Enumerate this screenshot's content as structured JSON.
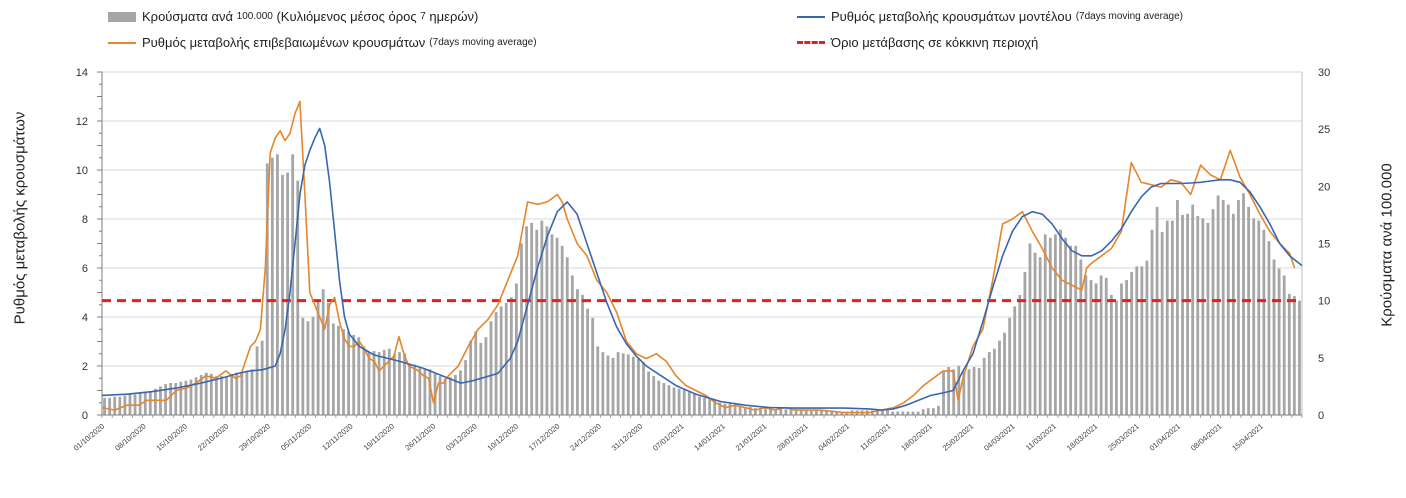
{
  "legend": {
    "bars_label": "Κρούσματα ανά",
    "bars_label_small": "100.000",
    "bars_label_rest": "(Κυλιόμενος μέσος όρος",
    "bars_label_small2": "7",
    "bars_label_end": "ημερών)",
    "model_label": "Ρυθμός μεταβολής κρουσμάτων μοντέλου",
    "model_small": "(7days moving average)",
    "confirmed_label": "Ρυθμός μεταβολής επιβεβαιωμένων κρουσμάτων",
    "confirmed_small": "(7days moving average)",
    "threshold_label": "Όριο μετάβασης σε κόκκινη περιοχή"
  },
  "colors": {
    "bars": "#a6a6a6",
    "model": "#3a66b0",
    "confirmed": "#e5862c",
    "threshold": "#e3201b",
    "grid": "#d9d9d9"
  },
  "chart_data": {
    "type": "bar",
    "title": "",
    "ylabel": "Ρυθμός μεταβολής κρουσμάτων",
    "y2label": "Κρούσματα ανά 100.000",
    "ylim": [
      0,
      14
    ],
    "y2lim": [
      0,
      30
    ],
    "yticks": [
      0,
      2,
      4,
      6,
      8,
      10,
      12,
      14
    ],
    "y2ticks": [
      0,
      5,
      10,
      15,
      20,
      25,
      30
    ],
    "threshold": 4.67,
    "x_tick_labels": [
      "01/10/2020",
      "08/10/2020",
      "15/10/2020",
      "22/10/2020",
      "29/10/2020",
      "05/11/2020",
      "12/11/2020",
      "19/11/2020",
      "26/11/2020",
      "03/12/2020",
      "10/12/2020",
      "17/12/2020",
      "24/12/2020",
      "31/12/2020",
      "07/01/2021",
      "14/01/2021",
      "21/01/2021",
      "28/01/2021",
      "04/02/2021",
      "11/02/2021",
      "18/02/2021",
      "25/02/2021",
      "04/03/2021",
      "11/03/2021",
      "18/03/2021",
      "25/03/2021",
      "01/04/2021",
      "08/04/2021",
      "15/04/2021"
    ],
    "series": [
      {
        "name": "Κρούσματα ανά 100.000 (7 ημερών)",
        "axis": "right",
        "kind": "bar",
        "values": [
          1.5,
          1.5,
          1.6,
          1.6,
          1.7,
          1.8,
          1.8,
          1.9,
          2.0,
          2.1,
          2.3,
          2.5,
          2.7,
          2.8,
          2.8,
          2.9,
          3.0,
          3.1,
          3.3,
          3.5,
          3.7,
          3.6,
          3.4,
          3.4,
          3.3,
          3.5,
          3.7,
          3.8,
          3.9,
          4.0,
          6.0,
          6.5,
          22.0,
          22.5,
          22.8,
          21.0,
          21.2,
          22.8,
          20.5,
          8.5,
          8.2,
          8.6,
          10.0,
          11.0,
          9.8,
          8.0,
          7.8,
          7.5,
          7.3,
          7.0,
          6.8,
          6.0,
          5.5,
          5.6,
          5.5,
          5.7,
          5.8,
          5.3,
          5.5,
          5.4,
          4.5,
          4.4,
          4.1,
          4.0,
          4.0,
          3.6,
          3.4,
          3.2,
          3.3,
          3.5,
          3.9,
          4.8,
          6.5,
          7.3,
          6.3,
          6.8,
          8.2,
          9.0,
          9.5,
          9.8,
          10.3,
          11.5,
          15.0,
          16.5,
          16.8,
          16.2,
          17.0,
          16.5,
          15.8,
          15.5,
          14.8,
          13.8,
          12.2,
          11.0,
          10.5,
          9.3,
          8.5,
          6.0,
          5.5,
          5.2,
          5.0,
          5.5,
          5.4,
          5.3,
          5.1,
          4.9,
          4.6,
          3.8,
          3.4,
          3.0,
          2.8,
          2.6,
          2.4,
          2.3,
          2.2,
          2.0,
          1.9,
          1.6,
          1.5,
          1.4,
          1.3,
          1.1,
          1.0,
          1.0,
          0.9,
          0.8,
          0.7,
          0.7,
          0.6,
          0.6,
          0.6,
          0.5,
          0.5,
          0.5,
          0.5,
          0.5,
          0.5,
          0.5,
          0.4,
          0.4,
          0.4,
          0.4,
          0.4,
          0.4,
          0.3,
          0.3,
          0.3,
          0.4,
          0.4,
          0.4,
          0.4,
          0.4,
          0.4,
          0.4,
          0.4,
          0.3,
          0.3,
          0.3,
          0.3,
          0.3,
          0.3,
          0.5,
          0.6,
          0.6,
          0.8,
          3.8,
          4.2,
          4.0,
          4.3,
          3.8,
          4.0,
          4.2,
          4.1,
          5.0,
          5.5,
          5.8,
          6.5,
          7.2,
          8.5,
          9.5,
          10.5,
          12.5,
          15.0,
          14.2,
          13.8,
          15.8,
          15.5,
          15.8,
          16.2,
          15.5,
          14.8,
          14.8,
          13.6,
          12.2,
          11.8,
          11.5,
          12.2,
          12.0,
          10.5,
          10.0,
          11.5,
          11.8,
          12.5,
          13.0,
          13.0,
          13.5,
          16.2,
          18.2,
          16.0,
          17.0,
          17.0,
          18.8,
          17.5,
          17.6,
          18.4,
          17.4,
          17.2,
          16.8,
          18.0,
          19.2,
          18.8,
          18.4,
          17.6,
          18.8,
          19.4,
          18.2,
          17.2,
          17.0,
          16.2,
          15.2,
          13.6,
          12.8,
          12.2,
          10.6,
          10.4,
          10.0
        ]
      },
      {
        "name": "Ρυθμός μεταβολής κρουσμάτων μοντέλου",
        "axis": "left",
        "kind": "line",
        "points": [
          [
            0,
            0.8
          ],
          [
            10,
            0.85
          ],
          [
            20,
            0.95
          ],
          [
            30,
            1.1
          ],
          [
            40,
            1.3
          ],
          [
            50,
            1.55
          ],
          [
            55,
            1.7
          ],
          [
            60,
            1.8
          ],
          [
            65,
            1.85
          ],
          [
            70,
            2.0
          ],
          [
            72,
            2.5
          ],
          [
            74,
            3.5
          ],
          [
            76,
            5.0
          ],
          [
            78,
            7.0
          ],
          [
            80,
            9.0
          ],
          [
            82,
            10.2
          ],
          [
            84,
            10.8
          ],
          [
            86,
            11.3
          ],
          [
            88,
            11.7
          ],
          [
            90,
            11.0
          ],
          [
            92,
            9.5
          ],
          [
            94,
            7.5
          ],
          [
            96,
            5.5
          ],
          [
            98,
            4.0
          ],
          [
            100,
            3.3
          ],
          [
            104,
            2.8
          ],
          [
            110,
            2.45
          ],
          [
            120,
            2.2
          ],
          [
            130,
            1.9
          ],
          [
            140,
            1.5
          ],
          [
            145,
            1.3
          ],
          [
            150,
            1.4
          ],
          [
            160,
            1.7
          ],
          [
            165,
            2.3
          ],
          [
            168,
            3.0
          ],
          [
            172,
            4.5
          ],
          [
            176,
            6.0
          ],
          [
            180,
            7.3
          ],
          [
            184,
            8.3
          ],
          [
            188,
            8.7
          ],
          [
            192,
            8.2
          ],
          [
            196,
            7.0
          ],
          [
            200,
            5.8
          ],
          [
            204,
            4.6
          ],
          [
            208,
            3.6
          ],
          [
            212,
            2.9
          ],
          [
            216,
            2.4
          ],
          [
            220,
            2.0
          ],
          [
            226,
            1.6
          ],
          [
            232,
            1.2
          ],
          [
            240,
            0.85
          ],
          [
            250,
            0.55
          ],
          [
            260,
            0.4
          ],
          [
            270,
            0.3
          ],
          [
            280,
            0.28
          ],
          [
            290,
            0.28
          ],
          [
            300,
            0.28
          ],
          [
            310,
            0.25
          ],
          [
            315,
            0.2
          ],
          [
            320,
            0.25
          ],
          [
            325,
            0.4
          ],
          [
            330,
            0.6
          ],
          [
            335,
            0.8
          ],
          [
            340,
            0.9
          ],
          [
            344,
            1.0
          ],
          [
            346,
            1.4
          ],
          [
            348,
            1.8
          ],
          [
            352,
            2.5
          ],
          [
            356,
            3.8
          ],
          [
            360,
            5.2
          ],
          [
            364,
            6.5
          ],
          [
            368,
            7.5
          ],
          [
            372,
            8.1
          ],
          [
            376,
            8.3
          ],
          [
            380,
            8.2
          ],
          [
            384,
            7.8
          ],
          [
            388,
            7.2
          ],
          [
            392,
            6.7
          ],
          [
            396,
            6.5
          ],
          [
            400,
            6.5
          ],
          [
            404,
            6.7
          ],
          [
            408,
            7.1
          ],
          [
            412,
            7.6
          ],
          [
            416,
            8.3
          ],
          [
            420,
            8.9
          ],
          [
            424,
            9.3
          ],
          [
            428,
            9.45
          ],
          [
            432,
            9.45
          ],
          [
            436,
            9.45
          ],
          [
            440,
            9.47
          ],
          [
            444,
            9.5
          ],
          [
            448,
            9.55
          ],
          [
            452,
            9.6
          ],
          [
            456,
            9.6
          ],
          [
            460,
            9.5
          ],
          [
            464,
            9.1
          ],
          [
            468,
            8.5
          ],
          [
            472,
            7.8
          ],
          [
            476,
            7.0
          ],
          [
            480,
            6.5
          ],
          [
            485,
            6.1
          ]
        ]
      },
      {
        "name": "Ρυθμός μεταβολής επιβεβαιωμένων κρουσμάτων",
        "axis": "left",
        "kind": "line",
        "points": [
          [
            0,
            0.3
          ],
          [
            5,
            0.2
          ],
          [
            10,
            0.4
          ],
          [
            15,
            0.4
          ],
          [
            18,
            0.6
          ],
          [
            22,
            0.6
          ],
          [
            26,
            0.6
          ],
          [
            30,
            1.0
          ],
          [
            34,
            1.1
          ],
          [
            38,
            1.3
          ],
          [
            42,
            1.6
          ],
          [
            46,
            1.5
          ],
          [
            50,
            1.8
          ],
          [
            54,
            1.5
          ],
          [
            56,
            1.6
          ],
          [
            58,
            2.2
          ],
          [
            60,
            2.8
          ],
          [
            62,
            3.0
          ],
          [
            64,
            3.5
          ],
          [
            66,
            6.0
          ],
          [
            68,
            10.7
          ],
          [
            70,
            11.3
          ],
          [
            72,
            11.6
          ],
          [
            74,
            11.2
          ],
          [
            76,
            11.5
          ],
          [
            78,
            12.3
          ],
          [
            80,
            12.8
          ],
          [
            82,
            9.0
          ],
          [
            84,
            5.0
          ],
          [
            86,
            4.5
          ],
          [
            88,
            4.0
          ],
          [
            90,
            3.5
          ],
          [
            92,
            4.5
          ],
          [
            94,
            4.8
          ],
          [
            96,
            3.8
          ],
          [
            98,
            3.1
          ],
          [
            100,
            2.8
          ],
          [
            102,
            2.8
          ],
          [
            104,
            3.0
          ],
          [
            106,
            2.7
          ],
          [
            108,
            2.3
          ],
          [
            110,
            2.2
          ],
          [
            112,
            1.8
          ],
          [
            114,
            2.0
          ],
          [
            116,
            2.2
          ],
          [
            118,
            2.4
          ],
          [
            120,
            3.2
          ],
          [
            122,
            2.5
          ],
          [
            124,
            2.0
          ],
          [
            126,
            1.9
          ],
          [
            128,
            1.8
          ],
          [
            130,
            1.6
          ],
          [
            132,
            1.5
          ],
          [
            134,
            0.5
          ],
          [
            136,
            1.3
          ],
          [
            138,
            1.3
          ],
          [
            140,
            1.6
          ],
          [
            144,
            2.0
          ],
          [
            148,
            2.8
          ],
          [
            152,
            3.5
          ],
          [
            156,
            3.9
          ],
          [
            160,
            4.5
          ],
          [
            164,
            5.5
          ],
          [
            168,
            6.5
          ],
          [
            172,
            8.7
          ],
          [
            176,
            8.6
          ],
          [
            180,
            8.7
          ],
          [
            184,
            9.0
          ],
          [
            186,
            8.7
          ],
          [
            188,
            8.0
          ],
          [
            192,
            7.0
          ],
          [
            196,
            6.5
          ],
          [
            200,
            5.5
          ],
          [
            204,
            5.0
          ],
          [
            208,
            4.2
          ],
          [
            212,
            3.0
          ],
          [
            216,
            2.5
          ],
          [
            220,
            2.3
          ],
          [
            224,
            2.5
          ],
          [
            228,
            2.2
          ],
          [
            232,
            1.6
          ],
          [
            236,
            1.2
          ],
          [
            240,
            1.0
          ],
          [
            244,
            0.8
          ],
          [
            248,
            0.5
          ],
          [
            252,
            0.3
          ],
          [
            256,
            0.4
          ],
          [
            260,
            0.3
          ],
          [
            264,
            0.2
          ],
          [
            268,
            0.3
          ],
          [
            272,
            0.2
          ],
          [
            276,
            0.3
          ],
          [
            280,
            0.2
          ],
          [
            290,
            0.2
          ],
          [
            300,
            0.1
          ],
          [
            310,
            0.1
          ],
          [
            315,
            0.2
          ],
          [
            320,
            0.3
          ],
          [
            324,
            0.5
          ],
          [
            328,
            0.8
          ],
          [
            332,
            1.2
          ],
          [
            336,
            1.5
          ],
          [
            340,
            1.8
          ],
          [
            344,
            1.8
          ],
          [
            346,
            0.6
          ],
          [
            348,
            1.5
          ],
          [
            352,
            2.8
          ],
          [
            356,
            3.5
          ],
          [
            360,
            5.5
          ],
          [
            364,
            7.8
          ],
          [
            368,
            8.0
          ],
          [
            372,
            8.3
          ],
          [
            376,
            7.5
          ],
          [
            380,
            6.8
          ],
          [
            384,
            6.0
          ],
          [
            388,
            5.5
          ],
          [
            392,
            5.3
          ],
          [
            396,
            5.1
          ],
          [
            398,
            6.0
          ],
          [
            400,
            6.2
          ],
          [
            404,
            6.5
          ],
          [
            408,
            6.8
          ],
          [
            412,
            7.5
          ],
          [
            416,
            10.3
          ],
          [
            420,
            9.5
          ],
          [
            424,
            9.4
          ],
          [
            428,
            9.3
          ],
          [
            432,
            9.6
          ],
          [
            436,
            9.5
          ],
          [
            440,
            9.0
          ],
          [
            444,
            10.2
          ],
          [
            448,
            9.8
          ],
          [
            452,
            9.6
          ],
          [
            456,
            10.8
          ],
          [
            460,
            9.7
          ],
          [
            464,
            9.0
          ],
          [
            468,
            8.2
          ],
          [
            472,
            7.5
          ],
          [
            476,
            7.0
          ],
          [
            480,
            6.6
          ],
          [
            482,
            6.0
          ]
        ]
      }
    ]
  }
}
